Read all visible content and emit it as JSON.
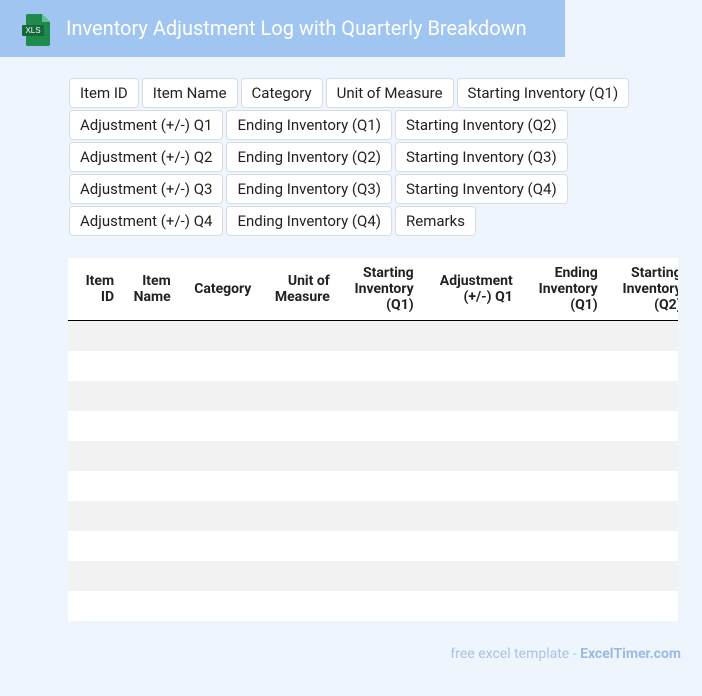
{
  "header": {
    "icon_label": "XLS",
    "title": "Inventory Adjustment Log with Quarterly Breakdown"
  },
  "columns": [
    "Item ID",
    "Item Name",
    "Category",
    "Unit of Measure",
    "Starting Inventory (Q1)",
    "Adjustment (+/-) Q1",
    "Ending Inventory (Q1)",
    "Starting Inventory (Q2)",
    "Adjustment (+/-) Q2",
    "Ending Inventory (Q2)",
    "Starting Inventory (Q3)",
    "Adjustment (+/-) Q3",
    "Ending Inventory (Q3)",
    "Starting Inventory (Q4)",
    "Adjustment (+/-) Q4",
    "Ending Inventory (Q4)",
    "Remarks"
  ],
  "footer": {
    "text": "free excel template - ",
    "site": "ExcelTimer.com"
  }
}
